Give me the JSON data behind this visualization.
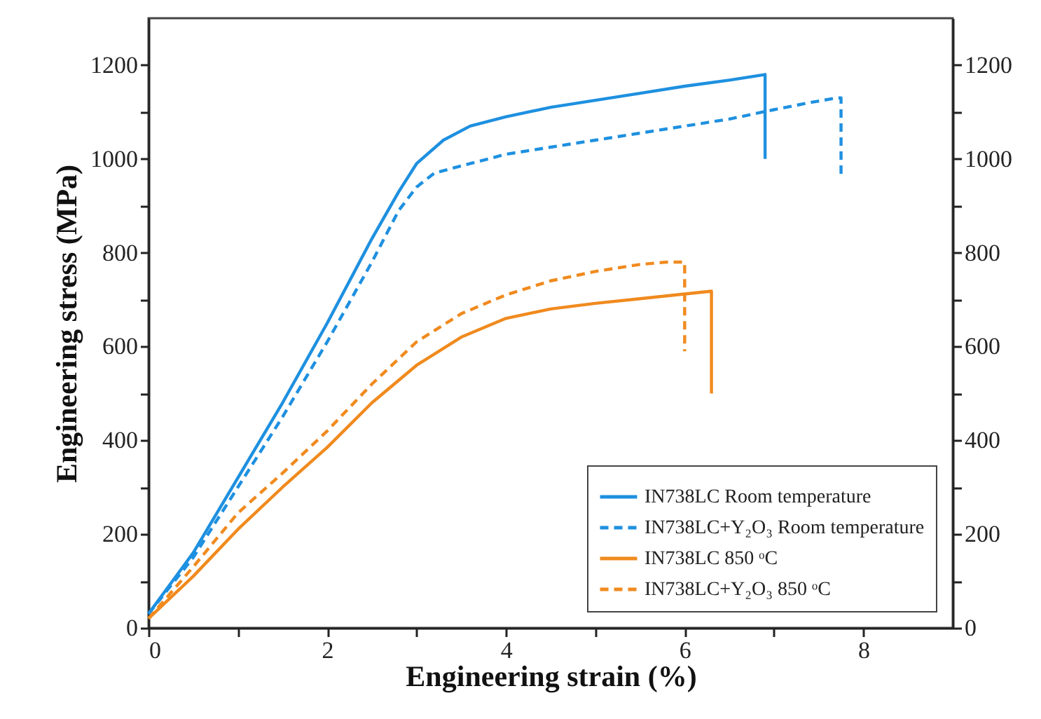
{
  "chart_data": {
    "type": "line",
    "xlabel": "Engineering strain (%)",
    "ylabel": "Engineering stress (MPa)",
    "xlim": [
      0,
      9
    ],
    "xticks": [
      0,
      {
        "value": 1,
        "label": null
      },
      2,
      {
        "value": 3,
        "label": null
      },
      4,
      {
        "value": 5,
        "label": null
      },
      6,
      {
        "value": 7,
        "label": null
      },
      8
    ],
    "ylim": [
      0,
      1300
    ],
    "yticks": [
      0,
      {
        "value": 100,
        "label": null
      },
      200,
      {
        "value": 300,
        "label": null
      },
      400,
      {
        "value": 500,
        "label": null
      },
      600,
      {
        "value": 700,
        "label": null
      },
      800,
      {
        "value": 900,
        "label": null
      },
      1000,
      {
        "value": 1100,
        "label": null
      },
      1200
    ],
    "y2lim": [
      0,
      1300
    ],
    "y2ticks": [
      0,
      {
        "value": 100,
        "label": null
      },
      200,
      {
        "value": 300,
        "label": null
      },
      400,
      {
        "value": 500,
        "label": null
      },
      600,
      {
        "value": 700,
        "label": null
      },
      800,
      {
        "value": 900,
        "label": null
      },
      1000,
      {
        "value": 1100,
        "label": null
      },
      1200
    ],
    "grid": false,
    "legend": "bottom right",
    "marker": "none",
    "series": [
      {
        "name": "IN738LC Room temperature",
        "color": "#1e90e0",
        "line_style": "solid",
        "x": [
          0,
          0.5,
          1,
          1.5,
          2,
          2.5,
          2.8,
          3,
          3.3,
          3.6,
          4,
          4.5,
          5,
          5.5,
          6,
          6.5,
          6.9,
          6.9
        ],
        "values": [
          30,
          160,
          320,
          480,
          650,
          830,
          930,
          990,
          1040,
          1070,
          1090,
          1110,
          1125,
          1140,
          1155,
          1168,
          1180,
          1000
        ]
      },
      {
        "name": "IN738LC+Y₂O₃ Room temperature",
        "color": "#1e90e0",
        "line_style": "dashed",
        "x": [
          0,
          0.5,
          1,
          1.5,
          2,
          2.5,
          2.8,
          3,
          3.2,
          3.6,
          4,
          4.5,
          5,
          5.5,
          6,
          6.5,
          7,
          7.4,
          7.7,
          7.75,
          7.75
        ],
        "values": [
          30,
          150,
          300,
          450,
          610,
          780,
          890,
          940,
          970,
          990,
          1010,
          1025,
          1040,
          1055,
          1070,
          1085,
          1105,
          1120,
          1130,
          1130,
          960
        ]
      },
      {
        "name": "IN738LC 850 ᵒC",
        "color": "#f08a1e",
        "line_style": "solid",
        "x": [
          0,
          0.5,
          1,
          1.5,
          2,
          2.5,
          3,
          3.5,
          4,
          4.5,
          5,
          5.5,
          6,
          6.3,
          6.3
        ],
        "values": [
          20,
          110,
          210,
          300,
          385,
          480,
          560,
          620,
          660,
          680,
          692,
          702,
          712,
          718,
          500
        ]
      },
      {
        "name": "IN738LC+Y₂O₃ 850 ᵒC",
        "color": "#f08a1e",
        "line_style": "dashed",
        "x": [
          0,
          0.5,
          1,
          1.5,
          2,
          2.5,
          3,
          3.5,
          4,
          4.5,
          5,
          5.5,
          5.8,
          6.0,
          6.0
        ],
        "values": [
          20,
          130,
          245,
          330,
          420,
          520,
          610,
          670,
          710,
          740,
          760,
          775,
          780,
          780,
          590
        ]
      }
    ]
  }
}
